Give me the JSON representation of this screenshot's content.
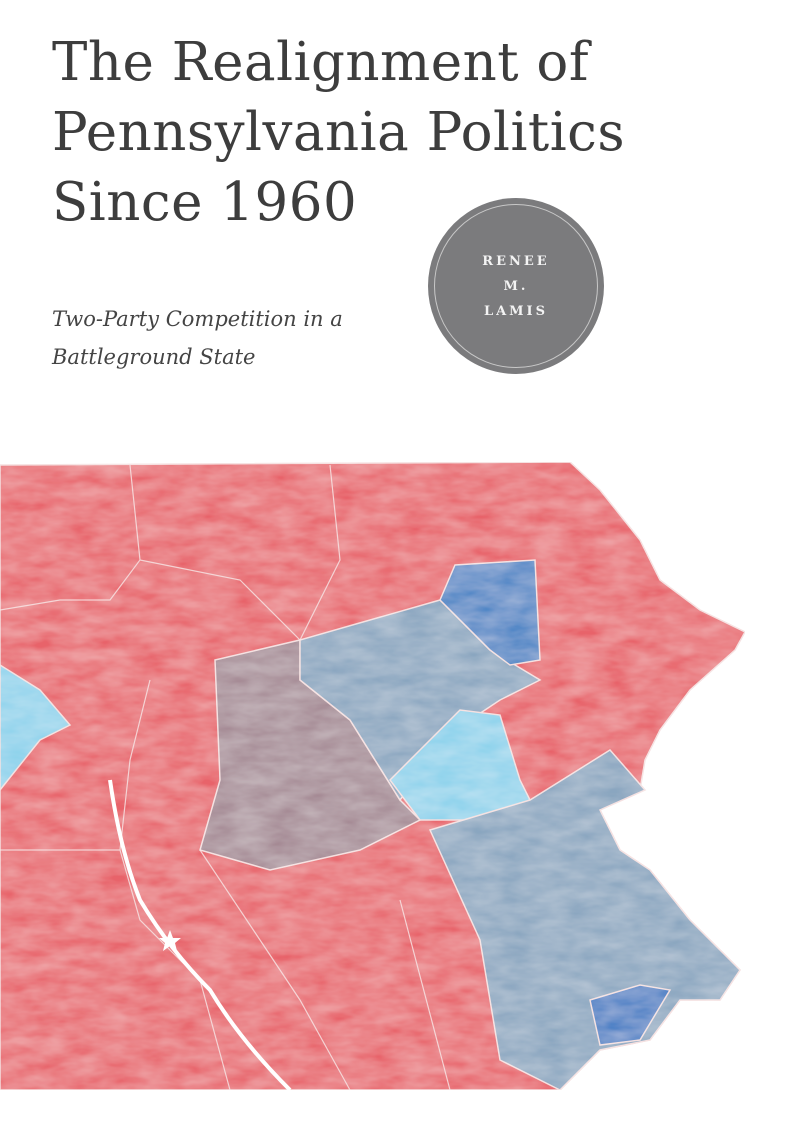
{
  "cover": {
    "title_lines": [
      "The Realignment of",
      "Pennsylvania Politics",
      "Since 1960"
    ],
    "subtitle_lines": [
      "Two-Party Competition in a",
      "Battleground State"
    ],
    "author_lines": [
      "RENEE",
      "M.",
      "LAMIS"
    ]
  },
  "colors": {
    "republican_red": "#e8646a",
    "democratic_blue": "#4f86c6",
    "gray_blue": "#8aa6c0",
    "light_cyan": "#8fd3ec",
    "mauve": "#a58a94",
    "badge_gray": "#7b7b7d",
    "title_text": "#3d3d3d"
  }
}
